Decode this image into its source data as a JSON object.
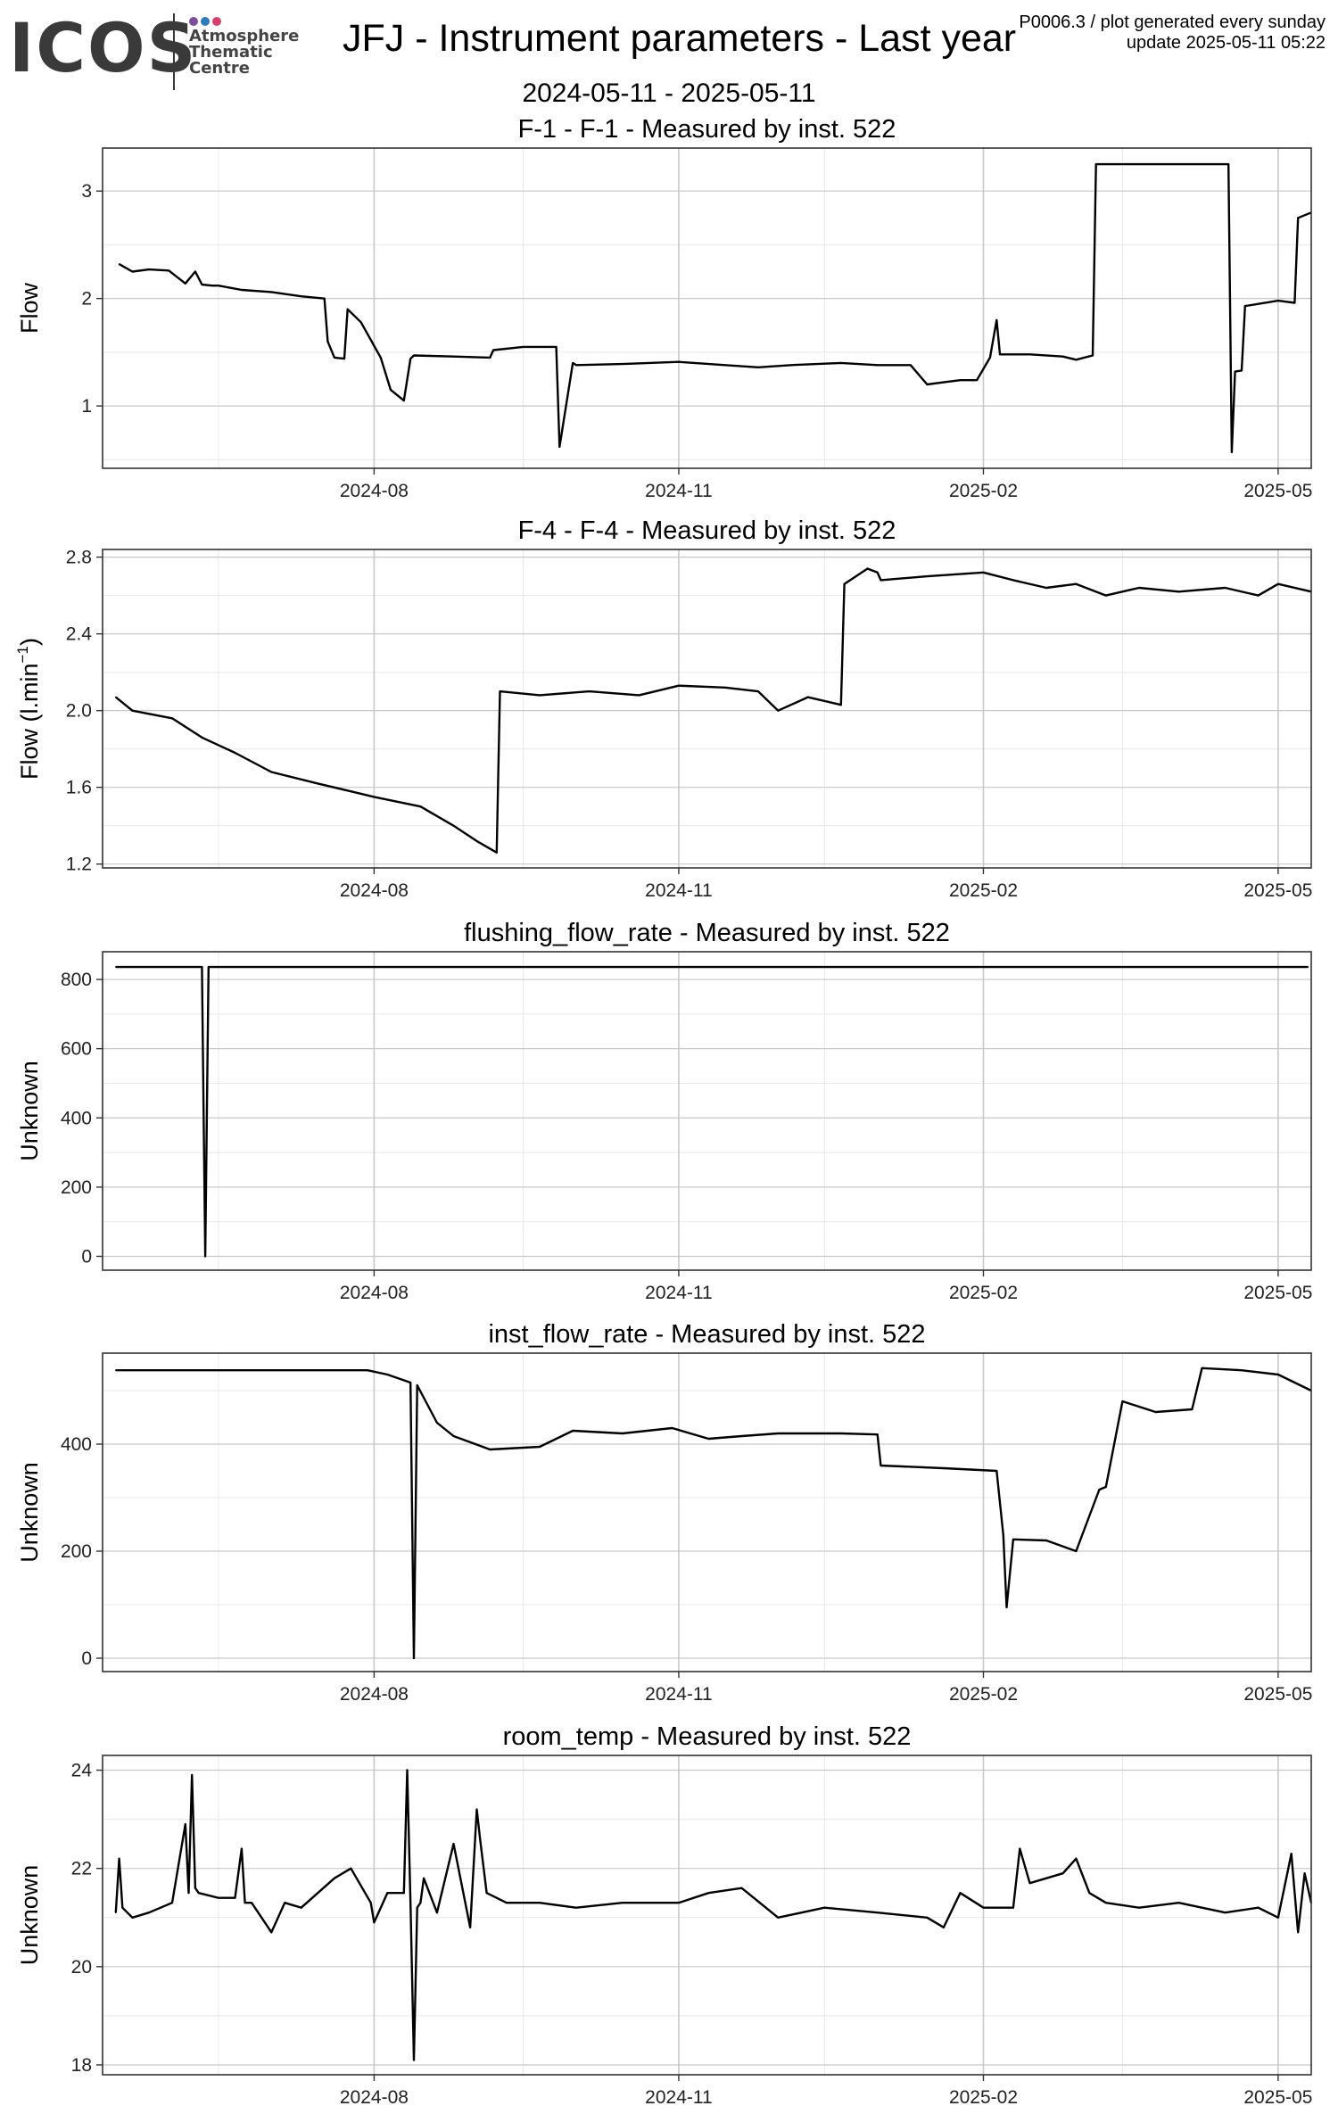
{
  "header": {
    "logo_text": "ICOS",
    "logo_sub": [
      "Atmosphere",
      "Thematic",
      "Centre"
    ],
    "logo_dot_colors": [
      "#7d4e9e",
      "#2e7bbf",
      "#d93f6c"
    ],
    "title": "JFJ - Instrument parameters - Last year",
    "date_range": "2024-05-11 - 2025-05-11",
    "meta_line1": "P0006.3 / plot generated every sunday",
    "meta_line2": "update  2025-05-11 05:22"
  },
  "colors": {
    "line": "#000000",
    "grid_major": "#c8c8c8",
    "grid_minor": "#e8e8e8",
    "frame": "#333333"
  },
  "chart_data": [
    {
      "type": "line",
      "title": "F-1 - F-1 - Measured by inst. 522",
      "ylabel": "Flow",
      "xlim": [
        "2024-05-11",
        "2025-05-11"
      ],
      "x_ticks": [
        "2024-08",
        "2024-11",
        "2025-02",
        "2025-05"
      ],
      "ylim": [
        0.42,
        3.4
      ],
      "y_ticks": [
        1,
        2,
        3
      ],
      "grid": true,
      "x": [
        "2024-05-16",
        "2024-05-20",
        "2024-05-25",
        "2024-05-31",
        "2024-06-05",
        "2024-06-08",
        "2024-06-10",
        "2024-06-13",
        "2024-06-15",
        "2024-06-22",
        "2024-07-01",
        "2024-07-10",
        "2024-07-17",
        "2024-07-18",
        "2024-07-20",
        "2024-07-23",
        "2024-07-24",
        "2024-07-28",
        "2024-08-03",
        "2024-08-06",
        "2024-08-10",
        "2024-08-12",
        "2024-08-13",
        "2024-08-25",
        "2024-09-05",
        "2024-09-06",
        "2024-09-15",
        "2024-09-25",
        "2024-09-26",
        "2024-09-30",
        "2024-10-01",
        "2024-10-15",
        "2024-11-01",
        "2024-11-15",
        "2024-11-25",
        "2024-12-05",
        "2024-12-20",
        "2024-12-31",
        "2025-01-10",
        "2025-01-15",
        "2025-01-20",
        "2025-01-25",
        "2025-01-30",
        "2025-02-03",
        "2025-02-05",
        "2025-02-06",
        "2025-02-15",
        "2025-02-25",
        "2025-03-01",
        "2025-03-06",
        "2025-03-07",
        "2025-04-16",
        "2025-04-17",
        "2025-04-18",
        "2025-04-20",
        "2025-04-21",
        "2025-05-01",
        "2025-05-06",
        "2025-05-07",
        "2025-05-11"
      ],
      "values": [
        2.32,
        2.25,
        2.27,
        2.26,
        2.14,
        2.25,
        2.13,
        2.12,
        2.12,
        2.08,
        2.06,
        2.02,
        2.0,
        1.6,
        1.45,
        1.44,
        1.9,
        1.78,
        1.45,
        1.15,
        1.05,
        1.44,
        1.47,
        1.46,
        1.45,
        1.52,
        1.55,
        1.55,
        0.62,
        1.4,
        1.38,
        1.39,
        1.41,
        1.38,
        1.36,
        1.38,
        1.4,
        1.38,
        1.38,
        1.2,
        1.22,
        1.24,
        1.24,
        1.45,
        1.8,
        1.48,
        1.48,
        1.46,
        1.43,
        1.47,
        3.25,
        3.25,
        0.57,
        1.32,
        1.33,
        1.93,
        1.98,
        1.96,
        2.75,
        2.8
      ]
    },
    {
      "type": "line",
      "title": "F-4 - F-4 - Measured by inst. 522",
      "ylabel": "Flow (l.min",
      "ylabel_sup": "−1",
      "ylabel_tail": ")",
      "xlim": [
        "2024-05-11",
        "2025-05-11"
      ],
      "x_ticks": [
        "2024-08",
        "2024-11",
        "2025-02",
        "2025-05"
      ],
      "ylim": [
        1.18,
        2.84
      ],
      "y_ticks": [
        1.2,
        1.6,
        2.0,
        2.4,
        2.8
      ],
      "grid": true,
      "x": [
        "2024-05-15",
        "2024-05-20",
        "2024-06-01",
        "2024-06-10",
        "2024-06-20",
        "2024-07-01",
        "2024-07-15",
        "2024-08-01",
        "2024-08-15",
        "2024-08-25",
        "2024-09-01",
        "2024-09-07",
        "2024-09-08",
        "2024-09-20",
        "2024-10-05",
        "2024-10-20",
        "2024-11-01",
        "2024-11-15",
        "2024-11-25",
        "2024-12-01",
        "2024-12-10",
        "2024-12-20",
        "2024-12-21",
        "2024-12-28",
        "2024-12-31",
        "2025-01-01",
        "2025-01-15",
        "2025-02-01",
        "2025-02-10",
        "2025-02-20",
        "2025-03-01",
        "2025-03-10",
        "2025-03-20",
        "2025-04-01",
        "2025-04-15",
        "2025-04-25",
        "2025-05-01",
        "2025-05-11"
      ],
      "values": [
        2.07,
        2.0,
        1.96,
        1.86,
        1.78,
        1.68,
        1.62,
        1.55,
        1.5,
        1.4,
        1.32,
        1.26,
        2.1,
        2.08,
        2.1,
        2.08,
        2.13,
        2.12,
        2.1,
        2.0,
        2.07,
        2.03,
        2.66,
        2.74,
        2.72,
        2.68,
        2.7,
        2.72,
        2.68,
        2.64,
        2.66,
        2.6,
        2.64,
        2.62,
        2.64,
        2.6,
        2.66,
        2.62
      ]
    },
    {
      "type": "line",
      "title": "flushing_flow_rate - Measured by inst. 522",
      "ylabel": "Unknown",
      "xlim": [
        "2024-05-11",
        "2025-05-11"
      ],
      "x_ticks": [
        "2024-08",
        "2024-11",
        "2025-02",
        "2025-05"
      ],
      "ylim": [
        -40,
        880
      ],
      "y_ticks": [
        0,
        200,
        400,
        600,
        800
      ],
      "grid": true,
      "x": [
        "2024-05-15",
        "2024-06-10",
        "2024-06-11",
        "2024-06-12",
        "2025-05-10"
      ],
      "values": [
        836,
        836,
        0,
        836,
        836
      ]
    },
    {
      "type": "line",
      "title": "inst_flow_rate - Measured by inst. 522",
      "ylabel": "Unknown",
      "xlim": [
        "2024-05-11",
        "2025-05-11"
      ],
      "x_ticks": [
        "2024-08",
        "2024-11",
        "2025-02",
        "2025-05"
      ],
      "ylim": [
        -25,
        570
      ],
      "y_ticks": [
        0,
        200,
        400
      ],
      "grid": true,
      "x": [
        "2024-05-15",
        "2024-07-30",
        "2024-08-05",
        "2024-08-12",
        "2024-08-13",
        "2024-08-14",
        "2024-08-20",
        "2024-08-25",
        "2024-09-05",
        "2024-09-20",
        "2024-09-30",
        "2024-10-15",
        "2024-10-30",
        "2024-11-10",
        "2024-11-20",
        "2024-12-01",
        "2024-12-20",
        "2024-12-31",
        "2025-01-01",
        "2025-01-20",
        "2025-02-05",
        "2025-02-07",
        "2025-02-08",
        "2025-02-10",
        "2025-02-20",
        "2025-03-01",
        "2025-03-08",
        "2025-03-10",
        "2025-03-15",
        "2025-03-25",
        "2025-04-05",
        "2025-04-08",
        "2025-04-20",
        "2025-05-01",
        "2025-05-11"
      ],
      "values": [
        538,
        538,
        530,
        515,
        0,
        510,
        440,
        415,
        390,
        395,
        425,
        420,
        430,
        410,
        415,
        420,
        420,
        418,
        360,
        355,
        350,
        230,
        95,
        222,
        220,
        200,
        315,
        320,
        480,
        460,
        465,
        542,
        538,
        530,
        500
      ]
    },
    {
      "type": "line",
      "title": "room_temp - Measured by inst. 522",
      "ylabel": "Unknown",
      "xlim": [
        "2024-05-11",
        "2025-05-11"
      ],
      "x_ticks": [
        "2024-08",
        "2024-11",
        "2025-02",
        "2025-05"
      ],
      "ylim": [
        17.8,
        24.3
      ],
      "y_ticks": [
        18,
        20,
        22,
        24
      ],
      "grid": true,
      "x": [
        "2024-05-15",
        "2024-05-16",
        "2024-05-17",
        "2024-05-20",
        "2024-05-25",
        "2024-06-01",
        "2024-06-05",
        "2024-06-06",
        "2024-06-07",
        "2024-06-08",
        "2024-06-09",
        "2024-06-15",
        "2024-06-20",
        "2024-06-22",
        "2024-06-23",
        "2024-06-25",
        "2024-07-01",
        "2024-07-05",
        "2024-07-10",
        "2024-07-20",
        "2024-07-25",
        "2024-07-31",
        "2024-08-01",
        "2024-08-05",
        "2024-08-10",
        "2024-08-11",
        "2024-08-12",
        "2024-08-13",
        "2024-08-14",
        "2024-08-15",
        "2024-08-16",
        "2024-08-20",
        "2024-08-25",
        "2024-08-30",
        "2024-09-01",
        "2024-09-02",
        "2024-09-04",
        "2024-09-10",
        "2024-09-20",
        "2024-10-01",
        "2024-10-15",
        "2024-11-01",
        "2024-11-10",
        "2024-11-20",
        "2024-12-01",
        "2024-12-15",
        "2024-12-31",
        "2025-01-15",
        "2025-01-20",
        "2025-01-25",
        "2025-02-01",
        "2025-02-10",
        "2025-02-12",
        "2025-02-15",
        "2025-02-25",
        "2025-03-01",
        "2025-03-05",
        "2025-03-10",
        "2025-03-20",
        "2025-04-01",
        "2025-04-15",
        "2025-04-25",
        "2025-05-01",
        "2025-05-05",
        "2025-05-07",
        "2025-05-09",
        "2025-05-11"
      ],
      "values": [
        21.1,
        22.2,
        21.2,
        21.0,
        21.1,
        21.3,
        22.9,
        21.5,
        23.9,
        21.6,
        21.5,
        21.4,
        21.4,
        22.4,
        21.3,
        21.3,
        20.7,
        21.3,
        21.2,
        21.8,
        22.0,
        21.3,
        20.9,
        21.5,
        21.5,
        24.0,
        21.3,
        18.1,
        21.2,
        21.3,
        21.8,
        21.1,
        22.5,
        20.8,
        23.2,
        22.6,
        21.5,
        21.3,
        21.3,
        21.2,
        21.3,
        21.3,
        21.5,
        21.6,
        21.0,
        21.2,
        21.1,
        21.0,
        20.8,
        21.5,
        21.2,
        21.2,
        22.4,
        21.7,
        21.9,
        22.2,
        21.5,
        21.3,
        21.2,
        21.3,
        21.1,
        21.2,
        21.0,
        22.3,
        20.7,
        21.9,
        21.3
      ]
    }
  ]
}
